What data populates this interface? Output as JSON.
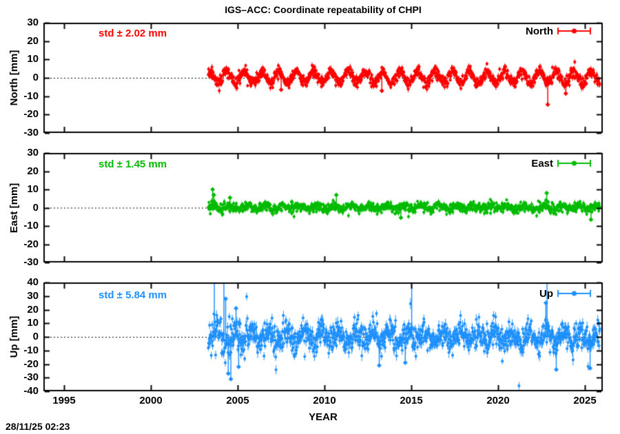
{
  "title": "IGS–ACC: Coordinate repeatability of CHPI",
  "timestamp": "28/11/25 02:23",
  "chart_data": {
    "type": "scatter",
    "xlabel": "YEAR",
    "xlim": [
      1993.8,
      2026.03
    ],
    "xticks": [
      1995,
      2000,
      2005,
      2010,
      2015,
      2020,
      2025
    ],
    "grid": false,
    "zero_line_style": "dotted-black",
    "legend_position": "top-right-inside",
    "marker": "filled-circle-with-yerrorbar",
    "data_start_year": 2003.3,
    "data_end_year": 2025.87,
    "sample_interval_years": 0.01923,
    "panels": [
      {
        "name": "North",
        "legend_label": "North",
        "std_label": "std ± 2.02 mm",
        "ylabel": "North [mm]",
        "color": "#ff0000",
        "ylim": [
          -30,
          30
        ],
        "ytick_step": 10,
        "mean_mm": 0.3,
        "seasonal_amplitude_mm": 3.1,
        "seasonal_phase": 0.12,
        "noise_std_mm": 1.5,
        "errorbar_mm": 1.4,
        "tail_prob": 0.02,
        "tail_factor": 1.9,
        "seed": 11,
        "outliers": [
          [
            2007.5,
            -6.5
          ],
          [
            2013.3,
            -7
          ],
          [
            2022.86,
            -14.5
          ],
          [
            2023.9,
            -8.5
          ]
        ]
      },
      {
        "name": "East",
        "legend_label": "East",
        "std_label": "std ± 1.45 mm",
        "ylabel": "East [mm]",
        "color": "#00bb00",
        "ylim": [
          -30,
          30
        ],
        "ytick_step": 10,
        "mean_mm": 0.2,
        "seasonal_amplitude_mm": 0.9,
        "seasonal_phase": 0.35,
        "noise_std_mm": 1.25,
        "errorbar_mm": 1.2,
        "tail_prob": 0.02,
        "tail_factor": 1.8,
        "seed": 22,
        "outliers": [
          [
            2003.55,
            10
          ],
          [
            2003.62,
            7
          ],
          [
            2004.55,
            5.5
          ],
          [
            2010.68,
            7
          ],
          [
            2014.4,
            -5.5
          ],
          [
            2022.8,
            8
          ],
          [
            2025.35,
            -6.5
          ]
        ]
      },
      {
        "name": "Up",
        "legend_label": "Up",
        "std_label": "std ± 5.84 mm",
        "ylabel": "Up [mm]",
        "color": "#1e90ff",
        "ylim": [
          -40,
          40
        ],
        "ytick_step": 10,
        "mean_mm": 0.0,
        "seasonal_amplitude_mm": 4.2,
        "seasonal_phase": 0.55,
        "noise_std_mm": 4.6,
        "errorbar_mm": 3.2,
        "tail_prob": 0.05,
        "tail_factor": 2.0,
        "early_noise_until": 2005.6,
        "early_noise_factor": 1.5,
        "seed": 33,
        "outliers": [
          [
            2003.65,
            55
          ],
          [
            2004.2,
            41
          ],
          [
            2004.3,
            28
          ],
          [
            2004.45,
            -27
          ],
          [
            2004.6,
            -31
          ],
          [
            2004.9,
            21
          ],
          [
            2005.05,
            -22
          ],
          [
            2013.15,
            -21
          ],
          [
            2014.65,
            -19
          ],
          [
            2015.02,
            60
          ],
          [
            2022.75,
            25
          ],
          [
            2022.82,
            52
          ],
          [
            2023.35,
            -24
          ],
          [
            2025.3,
            -23
          ]
        ]
      }
    ]
  }
}
